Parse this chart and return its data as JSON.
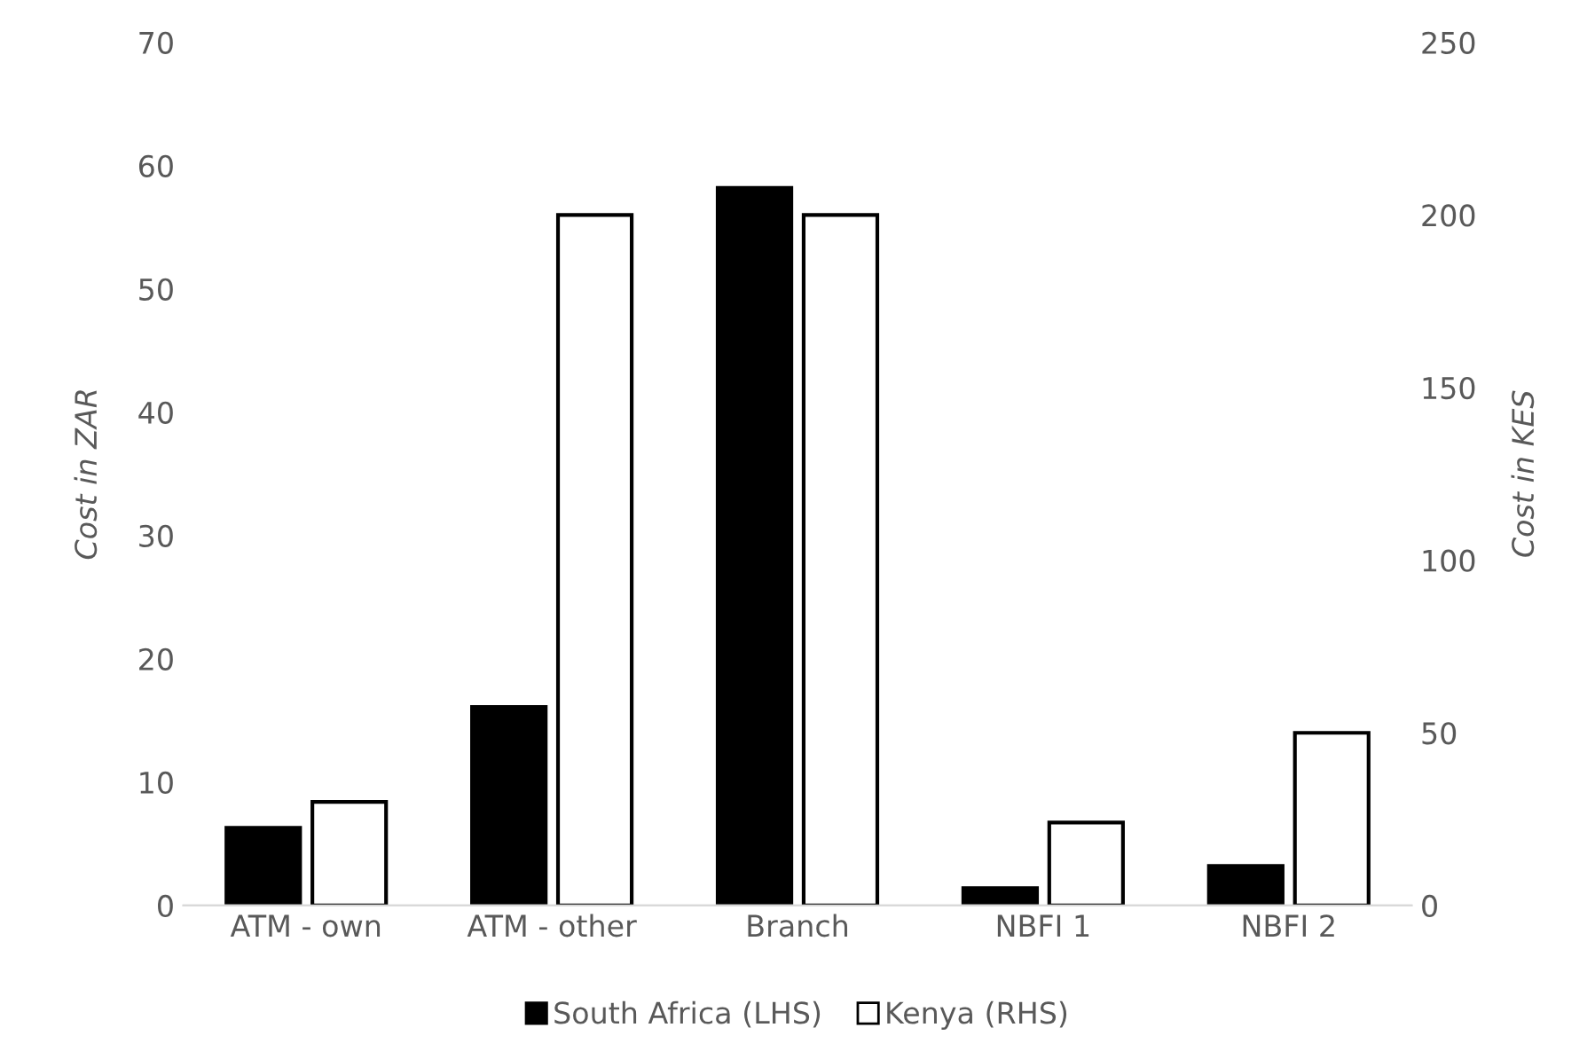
{
  "chart_data": {
    "type": "bar",
    "categories": [
      "ATM - own",
      "ATM - other",
      "Branch",
      "NBFI 1",
      "NBFI 2"
    ],
    "ylabel": "Cost in ZAR",
    "y2label": "Cost in KES",
    "ylim": [
      0,
      70
    ],
    "yticks": [
      0,
      10,
      20,
      30,
      40,
      50,
      60,
      70
    ],
    "y2lim": [
      0,
      250
    ],
    "y2ticks": [
      0,
      50,
      100,
      150,
      200,
      250
    ],
    "series": [
      {
        "name": "South Africa (LHS)",
        "color": "#000000",
        "values": [
          6.3,
          16.1,
          58.2,
          1.4,
          3.2
        ]
      },
      {
        "name": "Kenya (RHS)",
        "color": "#ffffff",
        "axis": "y2",
        "values": [
          30,
          200,
          200,
          24,
          50
        ]
      }
    ],
    "legend": "bottom",
    "grid": false
  }
}
